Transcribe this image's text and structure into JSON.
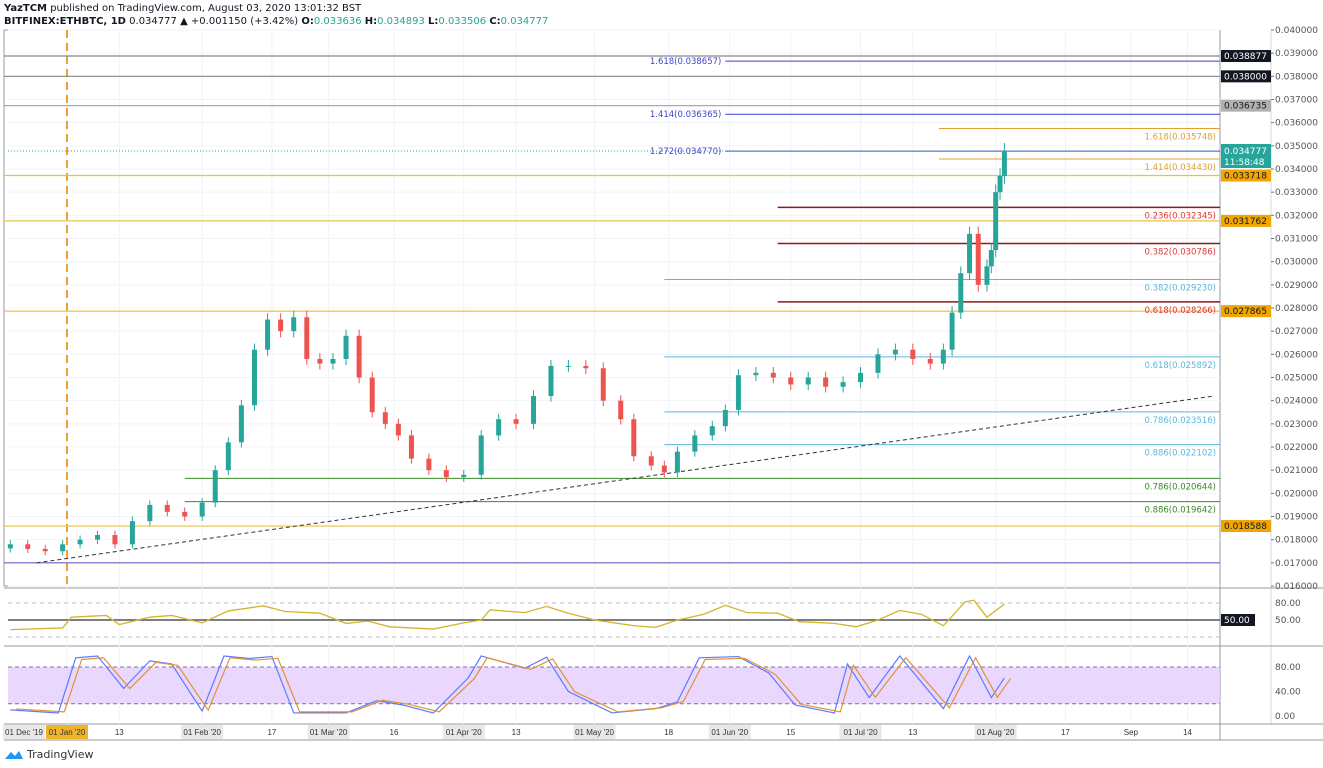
{
  "header": {
    "publisher": "YazTCM",
    "published_text": "published on TradingView.com, August 03, 2020 13:01:32 BST",
    "symbol": "BITFINEX:ETHBTC, 1D",
    "last": "0.034777",
    "change": "▲ +0.001150 (+3.42%)",
    "o_label": "O:",
    "o": "0.033636",
    "h_label": "H:",
    "h": "0.034893",
    "l_label": "L:",
    "l": "0.033506",
    "c_label": "C:",
    "c": "0.034777"
  },
  "colors": {
    "up": "#26a69a",
    "down": "#ef5350",
    "rsi": "#d4b52a",
    "stoch_k": "#5b7bff",
    "stoch_d": "#e0923a",
    "stoch_band": "#e4cdfc",
    "fib_blue": "#3f3fcf",
    "fib_orange": "#e0a030",
    "fib_red": "#8b1a1a",
    "fib_cyan": "#5bb8d8",
    "fib_green": "#3a8a2a",
    "level": "#e6b800"
  },
  "chart_data": {
    "type": "candlestick",
    "symbol": "BITFINEX:ETHBTC",
    "interval": "1D",
    "ylim": [
      0.016,
      0.04
    ],
    "y_ticks": [
      "0.040000",
      "0.039000",
      "0.038000",
      "0.037000",
      "0.036000",
      "0.035000",
      "0.034000",
      "0.033000",
      "0.032000",
      "0.031000",
      "0.030000",
      "0.029000",
      "0.028000",
      "0.027000",
      "0.026000",
      "0.025000",
      "0.024000",
      "0.023000",
      "0.022000",
      "0.021000",
      "0.020000",
      "0.019000",
      "0.018000",
      "0.017000",
      "0.016000"
    ],
    "x_ticks": [
      {
        "d": "2019-12-01",
        "t": "01 Dec '19"
      },
      {
        "d": "2020-01-01",
        "t": "01 Jan '20"
      },
      {
        "d": "2020-01-13",
        "t": "13"
      },
      {
        "d": "2020-02-01",
        "t": "01 Feb '20"
      },
      {
        "d": "2020-02-17",
        "t": "17"
      },
      {
        "d": "2020-03-01",
        "t": "01 Mar '20"
      },
      {
        "d": "2020-03-16",
        "t": "16"
      },
      {
        "d": "2020-04-01",
        "t": "01 Apr '20"
      },
      {
        "d": "2020-04-13",
        "t": "13"
      },
      {
        "d": "2020-05-01",
        "t": "01 May '20"
      },
      {
        "d": "2020-05-18",
        "t": "18"
      },
      {
        "d": "2020-06-01",
        "t": "01 Jun '20"
      },
      {
        "d": "2020-06-15",
        "t": "15"
      },
      {
        "d": "2020-07-01",
        "t": "01 Jul '20"
      },
      {
        "d": "2020-07-13",
        "t": "13"
      },
      {
        "d": "2020-08-01",
        "t": "01 Aug '20"
      },
      {
        "d": "2020-08-17",
        "t": "17"
      },
      {
        "d": "2020-09-01",
        "t": "Sep"
      },
      {
        "d": "2020-09-14",
        "t": "14"
      }
    ],
    "closes": [
      [
        "2019-12-19",
        0.0178
      ],
      [
        "2019-12-23",
        0.0176
      ],
      [
        "2019-12-27",
        0.0175
      ],
      [
        "2019-12-31",
        0.0178
      ],
      [
        "2020-01-04",
        0.018
      ],
      [
        "2020-01-08",
        0.0182
      ],
      [
        "2020-01-12",
        0.0178
      ],
      [
        "2020-01-16",
        0.0188
      ],
      [
        "2020-01-20",
        0.0195
      ],
      [
        "2020-01-24",
        0.0192
      ],
      [
        "2020-01-28",
        0.019
      ],
      [
        "2020-02-01",
        0.0196
      ],
      [
        "2020-02-04",
        0.021
      ],
      [
        "2020-02-07",
        0.0222
      ],
      [
        "2020-02-10",
        0.0238
      ],
      [
        "2020-02-13",
        0.0262
      ],
      [
        "2020-02-16",
        0.0275
      ],
      [
        "2020-02-19",
        0.027
      ],
      [
        "2020-02-22",
        0.0276
      ],
      [
        "2020-02-25",
        0.0258
      ],
      [
        "2020-02-28",
        0.0256
      ],
      [
        "2020-03-02",
        0.0258
      ],
      [
        "2020-03-05",
        0.0268
      ],
      [
        "2020-03-08",
        0.025
      ],
      [
        "2020-03-11",
        0.0235
      ],
      [
        "2020-03-14",
        0.023
      ],
      [
        "2020-03-17",
        0.0225
      ],
      [
        "2020-03-20",
        0.0215
      ],
      [
        "2020-03-24",
        0.021
      ],
      [
        "2020-03-28",
        0.0207
      ],
      [
        "2020-04-01",
        0.0208
      ],
      [
        "2020-04-05",
        0.0225
      ],
      [
        "2020-04-09",
        0.0232
      ],
      [
        "2020-04-13",
        0.023
      ],
      [
        "2020-04-17",
        0.0242
      ],
      [
        "2020-04-21",
        0.0255
      ],
      [
        "2020-04-25",
        0.0255
      ],
      [
        "2020-04-29",
        0.0254
      ],
      [
        "2020-05-03",
        0.024
      ],
      [
        "2020-05-07",
        0.0232
      ],
      [
        "2020-05-10",
        0.0216
      ],
      [
        "2020-05-14",
        0.0212
      ],
      [
        "2020-05-17",
        0.0209
      ],
      [
        "2020-05-20",
        0.0218
      ],
      [
        "2020-05-24",
        0.0225
      ],
      [
        "2020-05-28",
        0.0229
      ],
      [
        "2020-05-31",
        0.0236
      ],
      [
        "2020-06-03",
        0.0251
      ],
      [
        "2020-06-07",
        0.0252
      ],
      [
        "2020-06-11",
        0.025
      ],
      [
        "2020-06-15",
        0.0247
      ],
      [
        "2020-06-19",
        0.025
      ],
      [
        "2020-06-23",
        0.0246
      ],
      [
        "2020-06-27",
        0.0248
      ],
      [
        "2020-07-01",
        0.0252
      ],
      [
        "2020-07-05",
        0.026
      ],
      [
        "2020-07-09",
        0.0262
      ],
      [
        "2020-07-13",
        0.0258
      ],
      [
        "2020-07-17",
        0.0256
      ],
      [
        "2020-07-20",
        0.0262
      ],
      [
        "2020-07-22",
        0.0278
      ],
      [
        "2020-07-24",
        0.0295
      ],
      [
        "2020-07-26",
        0.0312
      ],
      [
        "2020-07-28",
        0.029
      ],
      [
        "2020-07-30",
        0.0298
      ],
      [
        "2020-07-31",
        0.0305
      ],
      [
        "2020-08-01",
        0.033
      ],
      [
        "2020-08-02",
        0.0337
      ],
      [
        "2020-08-03",
        0.034777
      ]
    ],
    "horizontal_levels": [
      {
        "price": 0.038877,
        "label": "0.038877",
        "badge": "#131722",
        "line": "#888"
      },
      {
        "price": 0.038,
        "label": "0.038000",
        "badge": "#131722",
        "line": "#888"
      },
      {
        "price": 0.036735,
        "label": "0.036735",
        "badge": "#b0b0b0",
        "line": "#aaa"
      },
      {
        "price": 0.033718,
        "label": "0.033718",
        "badge": "#f0a500",
        "line": "#e6c24a"
      },
      {
        "price": 0.031762,
        "label": "0.031762",
        "badge": "#f0a500",
        "line": "#e6c24a"
      },
      {
        "price": 0.027865,
        "label": "0.027865",
        "badge": "#f0a500",
        "line": "#e6c24a"
      },
      {
        "price": 0.018588,
        "label": "0.018588",
        "badge": "#f0a500",
        "line": "#e6c24a"
      },
      {
        "price": 0.017,
        "label": "",
        "badge": "",
        "line": "#7a5bc0"
      }
    ],
    "fib_levels": [
      {
        "text": "1.618(0.038657)",
        "price": 0.038657,
        "group": "blue",
        "from": "2020-05-31"
      },
      {
        "text": "1.414(0.036365)",
        "price": 0.036365,
        "group": "blue",
        "from": "2020-05-31"
      },
      {
        "text": "1.272(0.034770)",
        "price": 0.03477,
        "group": "blue",
        "from": "2020-05-31"
      },
      {
        "text": "1.618(0.035748)",
        "price": 0.035748,
        "group": "orange",
        "from": "2020-07-19"
      },
      {
        "text": "1.414(0.034430)",
        "price": 0.03443,
        "group": "orange",
        "from": "2020-07-19"
      },
      {
        "text": "0.236(0.032345)",
        "price": 0.032345,
        "group": "red",
        "from": "2020-06-12"
      },
      {
        "text": "0.382(0.030786)",
        "price": 0.030786,
        "group": "red",
        "from": "2020-06-12"
      },
      {
        "text": "0.618(0.028266)",
        "price": 0.028266,
        "group": "red",
        "from": "2020-06-12"
      },
      {
        "text": "0.382(0.029230)",
        "price": 0.02923,
        "group": "cyan",
        "from": "2020-05-17"
      },
      {
        "text": "0.618(0.025892)",
        "price": 0.025892,
        "group": "cyan",
        "from": "2020-05-17"
      },
      {
        "text": "0.786(0.023516)",
        "price": 0.023516,
        "group": "cyan",
        "from": "2020-05-17"
      },
      {
        "text": "0.886(0.022102)",
        "price": 0.022102,
        "group": "cyan",
        "from": "2020-05-17"
      },
      {
        "text": "0.786(0.020644)",
        "price": 0.020644,
        "group": "green",
        "from": "2020-01-28"
      },
      {
        "text": "0.886(0.019642)",
        "price": 0.019642,
        "group": "green",
        "from": "2020-01-28"
      }
    ],
    "trendline": [
      [
        "2019-12-25",
        0.017
      ],
      [
        "2020-09-20",
        0.0242
      ]
    ],
    "current_price": {
      "label": "0.034777",
      "countdown": "11:58:48"
    },
    "rsi": {
      "ticks": [
        "80.00",
        "50.00"
      ],
      "badge": "50.00",
      "values": [
        [
          "2019-12-19",
          33
        ],
        [
          "2019-12-31",
          36
        ],
        [
          "2020-01-02",
          55
        ],
        [
          "2020-01-10",
          58
        ],
        [
          "2020-01-13",
          42
        ],
        [
          "2020-01-20",
          55
        ],
        [
          "2020-01-25",
          58
        ],
        [
          "2020-02-01",
          45
        ],
        [
          "2020-02-07",
          66
        ],
        [
          "2020-02-15",
          75
        ],
        [
          "2020-02-20",
          65
        ],
        [
          "2020-02-28",
          62
        ],
        [
          "2020-03-05",
          44
        ],
        [
          "2020-03-10",
          48
        ],
        [
          "2020-03-15",
          38
        ],
        [
          "2020-03-25",
          34
        ],
        [
          "2020-04-01",
          45
        ],
        [
          "2020-04-05",
          50
        ],
        [
          "2020-04-07",
          68
        ],
        [
          "2020-04-15",
          63
        ],
        [
          "2020-04-20",
          74
        ],
        [
          "2020-04-25",
          62
        ],
        [
          "2020-05-01",
          50
        ],
        [
          "2020-05-10",
          40
        ],
        [
          "2020-05-15",
          37
        ],
        [
          "2020-05-20",
          50
        ],
        [
          "2020-05-26",
          60
        ],
        [
          "2020-05-31",
          76
        ],
        [
          "2020-06-05",
          63
        ],
        [
          "2020-06-12",
          62
        ],
        [
          "2020-06-17",
          47
        ],
        [
          "2020-06-25",
          44
        ],
        [
          "2020-06-30",
          38
        ],
        [
          "2020-07-05",
          50
        ],
        [
          "2020-07-10",
          67
        ],
        [
          "2020-07-15",
          60
        ],
        [
          "2020-07-20",
          40
        ],
        [
          "2020-07-25",
          82
        ],
        [
          "2020-07-27",
          85
        ],
        [
          "2020-07-30",
          55
        ],
        [
          "2020-08-03",
          78
        ]
      ]
    },
    "stoch": {
      "ticks": [
        "80.00",
        "40.00",
        "0.00"
      ],
      "k": [
        [
          "2019-12-19",
          10
        ],
        [
          "2019-12-30",
          5
        ],
        [
          "2020-01-03",
          95
        ],
        [
          "2020-01-08",
          98
        ],
        [
          "2020-01-14",
          45
        ],
        [
          "2020-01-20",
          90
        ],
        [
          "2020-01-25",
          85
        ],
        [
          "2020-02-01",
          8
        ],
        [
          "2020-02-06",
          98
        ],
        [
          "2020-02-12",
          94
        ],
        [
          "2020-02-17",
          97
        ],
        [
          "2020-02-22",
          5
        ],
        [
          "2020-03-05",
          5
        ],
        [
          "2020-03-12",
          25
        ],
        [
          "2020-03-18",
          18
        ],
        [
          "2020-03-25",
          5
        ],
        [
          "2020-04-02",
          62
        ],
        [
          "2020-04-05",
          98
        ],
        [
          "2020-04-15",
          78
        ],
        [
          "2020-04-20",
          96
        ],
        [
          "2020-04-25",
          40
        ],
        [
          "2020-05-05",
          5
        ],
        [
          "2020-05-15",
          12
        ],
        [
          "2020-05-20",
          23
        ],
        [
          "2020-05-25",
          95
        ],
        [
          "2020-06-03",
          97
        ],
        [
          "2020-06-10",
          70
        ],
        [
          "2020-06-16",
          18
        ],
        [
          "2020-06-25",
          5
        ],
        [
          "2020-06-28",
          85
        ],
        [
          "2020-07-03",
          30
        ],
        [
          "2020-07-10",
          98
        ],
        [
          "2020-07-20",
          12
        ],
        [
          "2020-07-26",
          98
        ],
        [
          "2020-07-31",
          30
        ],
        [
          "2020-08-03",
          62
        ]
      ]
    }
  }
}
